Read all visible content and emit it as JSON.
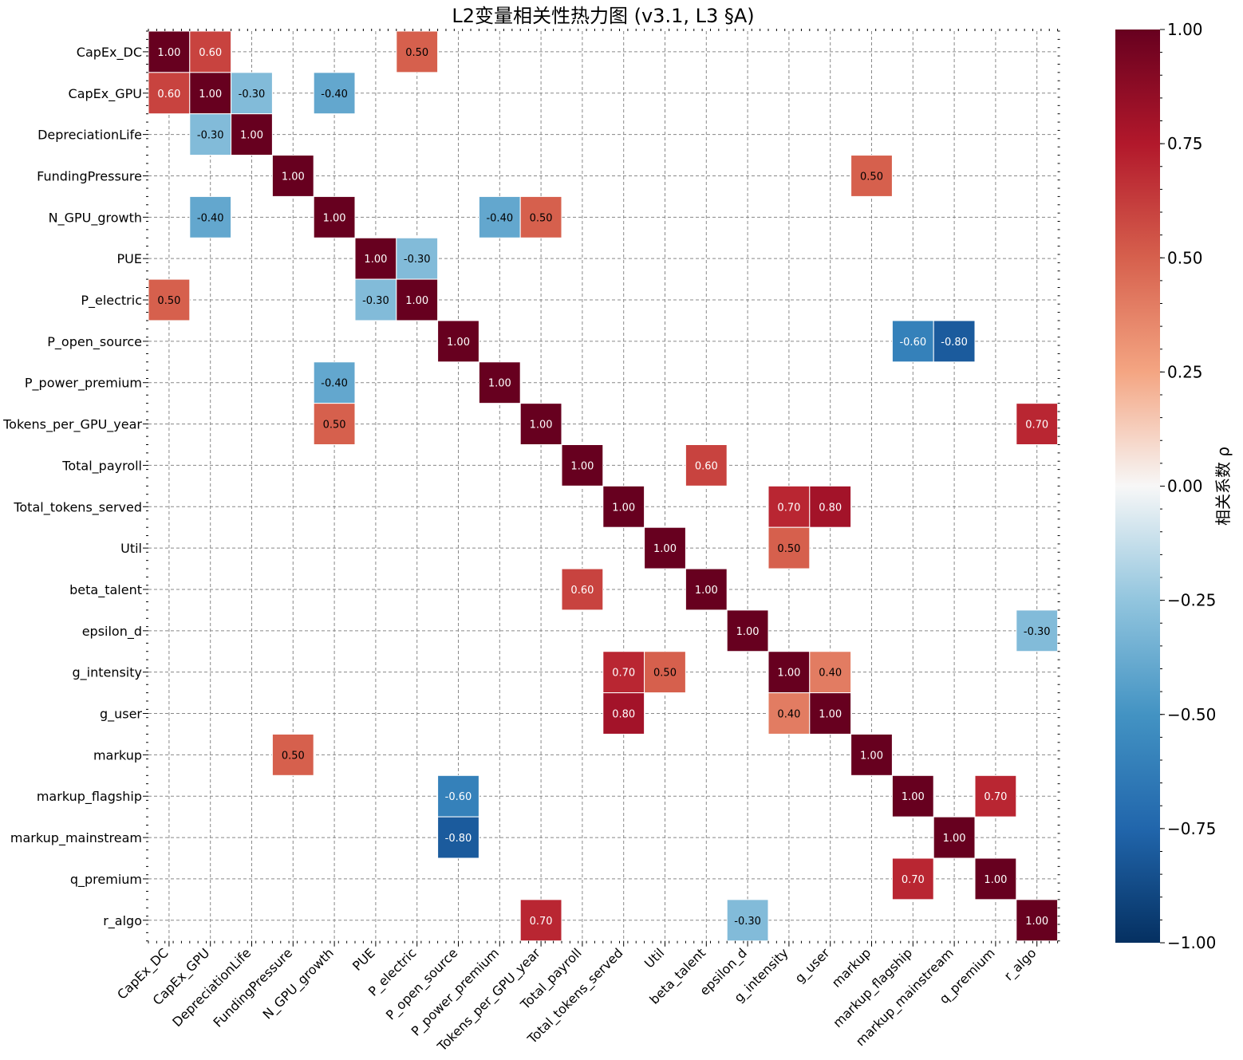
{
  "chart_data": {
    "type": "heatmap",
    "title": "L2变量相关性热力图 (v3.1, L3 §A)",
    "variables": [
      "CapEx_DC",
      "CapEx_GPU",
      "DepreciationLife",
      "FundingPressure",
      "N_GPU_growth",
      "PUE",
      "P_electric",
      "P_open_source",
      "P_power_premium",
      "Tokens_per_GPU_year",
      "Total_payroll",
      "Total_tokens_served",
      "Util",
      "beta_talent",
      "epsilon_d",
      "g_intensity",
      "g_user",
      "markup",
      "markup_flagship",
      "markup_mainstream",
      "q_premium",
      "r_algo"
    ],
    "cells": [
      {
        "row": "CapEx_DC",
        "col": "CapEx_DC",
        "value": 1.0
      },
      {
        "row": "CapEx_DC",
        "col": "CapEx_GPU",
        "value": 0.6
      },
      {
        "row": "CapEx_DC",
        "col": "P_electric",
        "value": 0.5
      },
      {
        "row": "CapEx_GPU",
        "col": "CapEx_DC",
        "value": 0.6
      },
      {
        "row": "CapEx_GPU",
        "col": "CapEx_GPU",
        "value": 1.0
      },
      {
        "row": "CapEx_GPU",
        "col": "DepreciationLife",
        "value": -0.3
      },
      {
        "row": "CapEx_GPU",
        "col": "N_GPU_growth",
        "value": -0.4
      },
      {
        "row": "DepreciationLife",
        "col": "CapEx_GPU",
        "value": -0.3
      },
      {
        "row": "DepreciationLife",
        "col": "DepreciationLife",
        "value": 1.0
      },
      {
        "row": "FundingPressure",
        "col": "FundingPressure",
        "value": 1.0
      },
      {
        "row": "FundingPressure",
        "col": "markup",
        "value": 0.5
      },
      {
        "row": "N_GPU_growth",
        "col": "CapEx_GPU",
        "value": -0.4
      },
      {
        "row": "N_GPU_growth",
        "col": "N_GPU_growth",
        "value": 1.0
      },
      {
        "row": "N_GPU_growth",
        "col": "P_power_premium",
        "value": -0.4
      },
      {
        "row": "N_GPU_growth",
        "col": "Tokens_per_GPU_year",
        "value": 0.5
      },
      {
        "row": "PUE",
        "col": "PUE",
        "value": 1.0
      },
      {
        "row": "PUE",
        "col": "P_electric",
        "value": -0.3
      },
      {
        "row": "P_electric",
        "col": "CapEx_DC",
        "value": 0.5
      },
      {
        "row": "P_electric",
        "col": "PUE",
        "value": -0.3
      },
      {
        "row": "P_electric",
        "col": "P_electric",
        "value": 1.0
      },
      {
        "row": "P_open_source",
        "col": "P_open_source",
        "value": 1.0
      },
      {
        "row": "P_open_source",
        "col": "markup_flagship",
        "value": -0.6
      },
      {
        "row": "P_open_source",
        "col": "markup_mainstream",
        "value": -0.8
      },
      {
        "row": "P_power_premium",
        "col": "N_GPU_growth",
        "value": -0.4
      },
      {
        "row": "P_power_premium",
        "col": "P_power_premium",
        "value": 1.0
      },
      {
        "row": "Tokens_per_GPU_year",
        "col": "N_GPU_growth",
        "value": 0.5
      },
      {
        "row": "Tokens_per_GPU_year",
        "col": "Tokens_per_GPU_year",
        "value": 1.0
      },
      {
        "row": "Tokens_per_GPU_year",
        "col": "r_algo",
        "value": 0.7
      },
      {
        "row": "Total_payroll",
        "col": "Total_payroll",
        "value": 1.0
      },
      {
        "row": "Total_payroll",
        "col": "beta_talent",
        "value": 0.6
      },
      {
        "row": "Total_tokens_served",
        "col": "Total_tokens_served",
        "value": 1.0
      },
      {
        "row": "Total_tokens_served",
        "col": "g_intensity",
        "value": 0.7
      },
      {
        "row": "Total_tokens_served",
        "col": "g_user",
        "value": 0.8
      },
      {
        "row": "Util",
        "col": "Util",
        "value": 1.0
      },
      {
        "row": "Util",
        "col": "g_intensity",
        "value": 0.5
      },
      {
        "row": "beta_talent",
        "col": "Total_payroll",
        "value": 0.6
      },
      {
        "row": "beta_talent",
        "col": "beta_talent",
        "value": 1.0
      },
      {
        "row": "epsilon_d",
        "col": "epsilon_d",
        "value": 1.0
      },
      {
        "row": "epsilon_d",
        "col": "r_algo",
        "value": -0.3
      },
      {
        "row": "g_intensity",
        "col": "Total_tokens_served",
        "value": 0.7
      },
      {
        "row": "g_intensity",
        "col": "Util",
        "value": 0.5
      },
      {
        "row": "g_intensity",
        "col": "g_intensity",
        "value": 1.0
      },
      {
        "row": "g_intensity",
        "col": "g_user",
        "value": 0.4
      },
      {
        "row": "g_user",
        "col": "Total_tokens_served",
        "value": 0.8
      },
      {
        "row": "g_user",
        "col": "g_intensity",
        "value": 0.4
      },
      {
        "row": "g_user",
        "col": "g_user",
        "value": 1.0
      },
      {
        "row": "markup",
        "col": "FundingPressure",
        "value": 0.5
      },
      {
        "row": "markup",
        "col": "markup",
        "value": 1.0
      },
      {
        "row": "markup_flagship",
        "col": "P_open_source",
        "value": -0.6
      },
      {
        "row": "markup_flagship",
        "col": "markup_flagship",
        "value": 1.0
      },
      {
        "row": "markup_flagship",
        "col": "q_premium",
        "value": 0.7
      },
      {
        "row": "markup_mainstream",
        "col": "P_open_source",
        "value": -0.8
      },
      {
        "row": "markup_mainstream",
        "col": "markup_mainstream",
        "value": 1.0
      },
      {
        "row": "q_premium",
        "col": "markup_flagship",
        "value": 0.7
      },
      {
        "row": "q_premium",
        "col": "q_premium",
        "value": 1.0
      },
      {
        "row": "r_algo",
        "col": "Tokens_per_GPU_year",
        "value": 0.7
      },
      {
        "row": "r_algo",
        "col": "epsilon_d",
        "value": -0.3
      },
      {
        "row": "r_algo",
        "col": "r_algo",
        "value": 1.0
      }
    ],
    "value_format": "0.00",
    "colormap": "RdBu_r",
    "vmin": -1.0,
    "vmax": 1.0,
    "colorbar": {
      "label": "相关系数 ρ",
      "ticks": [
        "−1.00",
        "−0.75",
        "−0.50",
        "−0.25",
        "0.00",
        "0.25",
        "0.50",
        "0.75",
        "1.00"
      ],
      "tick_values": [
        -1.0,
        -0.75,
        -0.5,
        -0.25,
        0.0,
        0.25,
        0.5,
        0.75,
        1.0
      ],
      "placement": "right"
    },
    "grid": true,
    "grid_style": "dashed"
  }
}
